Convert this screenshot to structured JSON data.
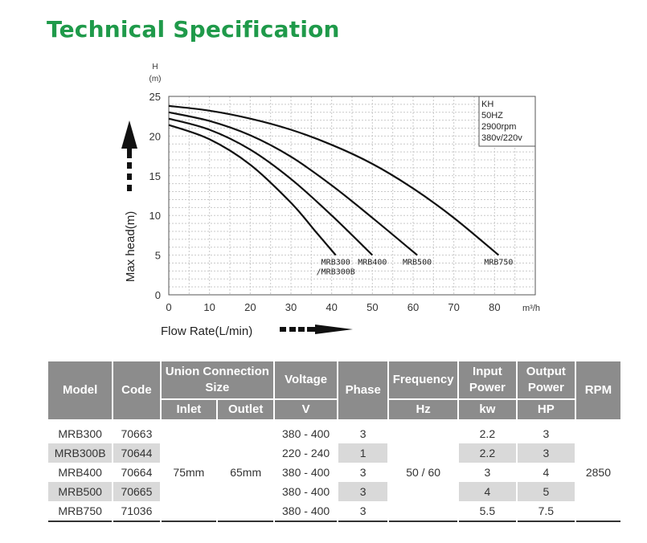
{
  "page": {
    "title": "Technical Specification"
  },
  "chart_data": {
    "type": "line",
    "xlabel": "Flow Rate(L/min)",
    "ylabel": "Max head(m)",
    "x_unit": "m³/h",
    "y_unit_top": "H",
    "y_unit_bottom": "(m)",
    "xlim": [
      0,
      90
    ],
    "ylim": [
      0,
      25
    ],
    "xticks": [
      0,
      10,
      20,
      30,
      40,
      50,
      60,
      70,
      80
    ],
    "yticks": [
      0,
      5,
      10,
      15,
      20,
      25
    ],
    "grid": true,
    "info_box": [
      "KH",
      "50HZ",
      "2900rpm",
      "380v/220v"
    ],
    "series": [
      {
        "label": [
          "MRB300",
          "/MRB300B"
        ],
        "x": [
          0,
          10,
          20,
          30,
          36,
          41
        ],
        "y": [
          21.4,
          19.6,
          16.4,
          11.6,
          8.0,
          5.0
        ]
      },
      {
        "label": [
          "MRB400"
        ],
        "x": [
          0,
          10,
          20,
          30,
          40,
          50
        ],
        "y": [
          22.2,
          20.8,
          18.3,
          14.6,
          10.0,
          5.0
        ]
      },
      {
        "label": [
          "MRB500"
        ],
        "x": [
          0,
          10,
          20,
          30,
          40,
          50,
          61
        ],
        "y": [
          23.0,
          21.9,
          20.1,
          17.4,
          13.8,
          9.7,
          5.0
        ]
      },
      {
        "label": [
          "MRB750"
        ],
        "x": [
          0,
          10,
          20,
          30,
          40,
          50,
          60,
          70,
          81
        ],
        "y": [
          23.8,
          23.2,
          22.2,
          20.8,
          18.9,
          16.5,
          13.4,
          9.7,
          5.0
        ]
      }
    ]
  },
  "table": {
    "headers": {
      "model": "Model",
      "code": "Code",
      "union": [
        "Union Connection",
        "Size"
      ],
      "inlet": "Inlet",
      "outlet": "Outlet",
      "voltage": "Voltage",
      "voltage_unit": "V",
      "phase": "Phase",
      "frequency": "Frequency",
      "frequency_unit": "Hz",
      "input_power": [
        "Input",
        "Power"
      ],
      "input_unit": "kw",
      "output_power": [
        "Output",
        "Power"
      ],
      "output_unit": "HP",
      "rpm": "RPM"
    },
    "inlet_value": "75mm",
    "outlet_value": "65mm",
    "frequency_value": "50 / 60",
    "rpm_value": "2850",
    "rows": [
      {
        "model": "MRB300",
        "code": "70663",
        "voltage": "380 - 400",
        "phase": "3",
        "input": "2.2",
        "output": "3"
      },
      {
        "model": "MRB300B",
        "code": "70644",
        "voltage": "220 - 240",
        "phase": "1",
        "input": "2.2",
        "output": "3"
      },
      {
        "model": "MRB400",
        "code": "70664",
        "voltage": "380 - 400",
        "phase": "3",
        "input": "3",
        "output": "4"
      },
      {
        "model": "MRB500",
        "code": "70665",
        "voltage": "380 - 400",
        "phase": "3",
        "input": "4",
        "output": "5"
      },
      {
        "model": "MRB750",
        "code": "71036",
        "voltage": "380 - 400",
        "phase": "3",
        "input": "5.5",
        "output": "7.5"
      }
    ]
  }
}
